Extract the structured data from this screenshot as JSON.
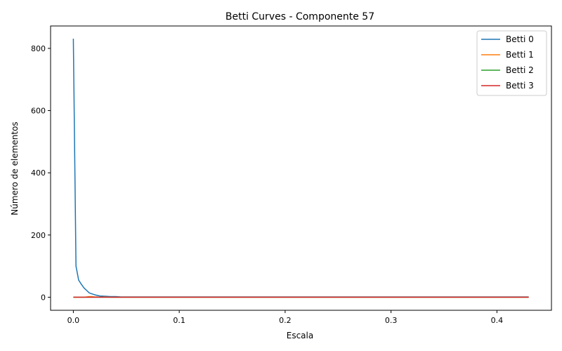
{
  "chart_data": {
    "type": "line",
    "title": "Betti Curves - Componente 57",
    "xlabel": "Escala",
    "ylabel": "Número de elementos",
    "xlim": [
      -0.0215,
      0.4515
    ],
    "ylim": [
      -42,
      872
    ],
    "xticks": [
      0.0,
      0.1,
      0.2,
      0.3,
      0.4
    ],
    "xtick_labels": [
      "0.0",
      "0.1",
      "0.2",
      "0.3",
      "0.4"
    ],
    "yticks": [
      0,
      200,
      400,
      600,
      800
    ],
    "ytick_labels": [
      "0",
      "200",
      "400",
      "600",
      "800"
    ],
    "grid": false,
    "legend_position": "top-right",
    "series": [
      {
        "name": "Betti 0",
        "color": "#1f77b4",
        "x": [
          0.0,
          0.0025,
          0.005,
          0.0075,
          0.01,
          0.0125,
          0.015,
          0.0175,
          0.02,
          0.0225,
          0.025,
          0.03,
          0.035,
          0.04,
          0.045,
          0.05,
          0.06,
          0.08,
          0.1,
          0.15,
          0.2,
          0.25,
          0.3,
          0.35,
          0.4,
          0.43
        ],
        "y": [
          831,
          100,
          55,
          42,
          30,
          22,
          14,
          11,
          8,
          6,
          4,
          3,
          2,
          2,
          1,
          1,
          1,
          1,
          1,
          1,
          1,
          1,
          1,
          1,
          1,
          1
        ]
      },
      {
        "name": "Betti 1",
        "color": "#ff7f0e",
        "x": [
          0.0,
          0.005,
          0.01,
          0.0125,
          0.015,
          0.0175,
          0.02,
          0.0225,
          0.025,
          0.03,
          0.035,
          0.04,
          0.05,
          0.1,
          0.2,
          0.3,
          0.4,
          0.43
        ],
        "y": [
          0,
          0,
          0,
          1,
          2,
          2,
          1,
          1,
          0,
          1,
          0,
          0,
          0,
          0,
          0,
          0,
          0,
          0
        ]
      },
      {
        "name": "Betti 2",
        "color": "#2ca02c",
        "x": [
          0.0,
          0.1,
          0.2,
          0.3,
          0.4,
          0.43
        ],
        "y": [
          0,
          0,
          0,
          0,
          0,
          0
        ]
      },
      {
        "name": "Betti 3",
        "color": "#d62728",
        "x": [
          0.0,
          0.1,
          0.2,
          0.3,
          0.4,
          0.43
        ],
        "y": [
          0,
          0,
          0,
          0,
          0,
          0
        ]
      }
    ]
  }
}
